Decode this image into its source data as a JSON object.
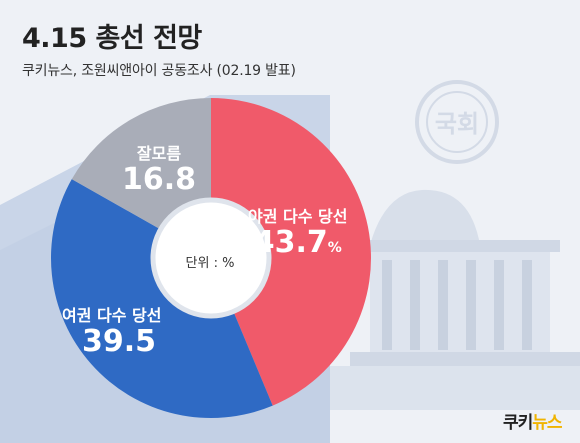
{
  "header": {
    "title": "4.15 총선 전망",
    "subtitle": "쿠키뉴스, 조원씨앤아이 공동조사 (02.19 발표)"
  },
  "chart_data": {
    "type": "pie",
    "unit_label": "단위 : %",
    "slices": [
      {
        "label": "야권 다수 당선",
        "value": 43.7,
        "color": "#f05a6a"
      },
      {
        "label": "여권 다수 당선",
        "value": 39.5,
        "color": "#2f6ac4"
      },
      {
        "label": "잘모름",
        "value": 16.8,
        "color": "#a9adb8"
      }
    ],
    "value_suffix": "%"
  },
  "watermark": {
    "seal_text": "국회"
  },
  "logo": {
    "part1": "쿠키",
    "part2": "뉴스"
  },
  "colors": {
    "background": "#eef1f6",
    "shadow": "#c9d5e8",
    "building": "#d8dfea"
  }
}
